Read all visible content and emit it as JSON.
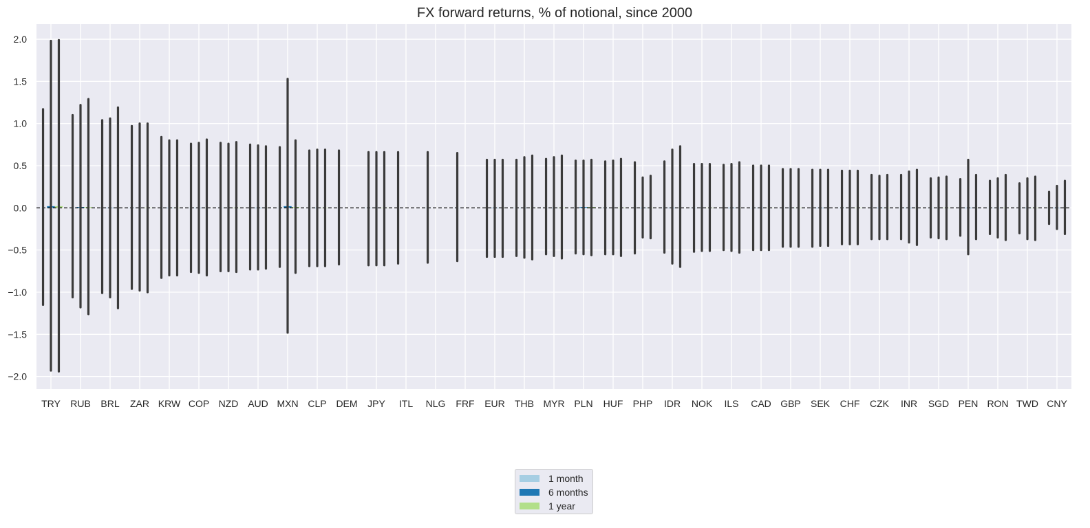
{
  "chart_data": {
    "type": "bar",
    "title": "FX forward returns, % of notional, since 2000",
    "xlabel": "",
    "ylabel": "",
    "ylim": [
      -2.15,
      2.18
    ],
    "yticks": [
      -2.0,
      -1.5,
      -1.0,
      -0.5,
      0.0,
      0.5,
      1.0,
      1.5,
      2.0
    ],
    "ytick_labels": [
      "−2.0",
      "−1.5",
      "−1.0",
      "−0.5",
      "0.0",
      "0.5",
      "1.0",
      "1.5",
      "2.0"
    ],
    "grid": true,
    "reference_line": {
      "y": 0.0,
      "style": "dashed",
      "color": "#000000"
    },
    "legend_position": "bottom-center",
    "error_bar_color": "#3a3a3a",
    "categories": [
      "TRY",
      "RUB",
      "BRL",
      "ZAR",
      "KRW",
      "COP",
      "NZD",
      "AUD",
      "MXN",
      "CLP",
      "DEM",
      "JPY",
      "ITL",
      "NLG",
      "FRF",
      "EUR",
      "THB",
      "MYR",
      "PLN",
      "HUF",
      "PHP",
      "IDR",
      "NOK",
      "ILS",
      "CAD",
      "GBP",
      "SEK",
      "CHF",
      "CZK",
      "INR",
      "SGD",
      "PEN",
      "RON",
      "TWD",
      "CNY"
    ],
    "series": [
      {
        "name": "1 month",
        "color": "#a6cee3",
        "values": [
          0.0,
          0.0,
          0.0,
          0.0,
          0.0,
          0.0,
          0.0,
          0.0,
          0.0,
          0.0,
          0.0,
          0.0,
          0.0,
          0.0,
          0.0,
          0.0,
          0.0,
          0.0,
          0.0,
          0.0,
          0.0,
          0.0,
          0.0,
          0.0,
          0.0,
          0.0,
          0.0,
          0.0,
          0.0,
          0.0,
          0.0,
          0.0,
          0.0,
          0.0,
          0.0
        ],
        "err_high": [
          1.17,
          1.1,
          1.04,
          0.97,
          0.84,
          0.76,
          0.77,
          0.75,
          0.72,
          0.68,
          0.68,
          0.66,
          0.66,
          0.66,
          0.65,
          0.57,
          0.57,
          0.58,
          0.56,
          0.55,
          0.54,
          0.55,
          0.52,
          0.51,
          0.5,
          0.46,
          0.45,
          0.44,
          0.39,
          0.39,
          0.35,
          0.34,
          0.32,
          0.29,
          0.19
        ],
        "err_low": [
          -1.15,
          -1.06,
          -1.01,
          -0.96,
          -0.83,
          -0.76,
          -0.75,
          -0.73,
          -0.7,
          -0.69,
          -0.67,
          -0.68,
          -0.66,
          -0.65,
          -0.63,
          -0.58,
          -0.57,
          -0.55,
          -0.54,
          -0.55,
          -0.54,
          -0.53,
          -0.52,
          -0.5,
          -0.5,
          -0.46,
          -0.46,
          -0.43,
          -0.37,
          -0.37,
          -0.35,
          -0.33,
          -0.31,
          -0.3,
          -0.19
        ]
      },
      {
        "name": "6 months",
        "color": "#1f78b4",
        "values": [
          0.02,
          0.01,
          0.0,
          0.0,
          0.0,
          0.0,
          0.0,
          0.0,
          0.02,
          0.0,
          null,
          0.0,
          null,
          null,
          null,
          0.0,
          0.0,
          0.0,
          0.01,
          0.0,
          0.0,
          0.0,
          0.0,
          0.0,
          0.0,
          0.0,
          0.0,
          0.0,
          0.0,
          0.0,
          0.0,
          0.0,
          0.0,
          0.0,
          0.0
        ],
        "err_high": [
          1.98,
          1.22,
          1.06,
          1.0,
          0.8,
          0.77,
          0.76,
          0.74,
          1.53,
          0.69,
          null,
          0.66,
          null,
          null,
          null,
          0.57,
          0.6,
          0.6,
          0.56,
          0.56,
          0.36,
          0.69,
          0.52,
          0.52,
          0.5,
          0.46,
          0.45,
          0.44,
          0.38,
          0.43,
          0.36,
          0.57,
          0.35,
          0.35,
          0.26
        ],
        "err_low": [
          -1.93,
          -1.18,
          -1.06,
          -0.98,
          -0.8,
          -0.77,
          -0.75,
          -0.73,
          -1.48,
          -0.69,
          null,
          -0.68,
          null,
          null,
          null,
          -0.58,
          -0.59,
          -0.57,
          -0.55,
          -0.55,
          -0.35,
          -0.66,
          -0.51,
          -0.51,
          -0.5,
          -0.46,
          -0.45,
          -0.43,
          -0.37,
          -0.41,
          -0.36,
          -0.55,
          -0.35,
          -0.37,
          -0.25
        ]
      },
      {
        "name": "1 year",
        "color": "#b2df8a",
        "values": [
          0.02,
          0.01,
          0.0,
          0.0,
          0.0,
          0.0,
          0.0,
          0.0,
          0.01,
          0.0,
          null,
          0.0,
          null,
          null,
          null,
          0.0,
          0.0,
          0.0,
          0.01,
          0.0,
          0.0,
          0.0,
          0.0,
          0.0,
          0.0,
          0.0,
          0.0,
          0.0,
          0.0,
          0.0,
          0.0,
          0.0,
          0.0,
          0.0,
          0.0
        ],
        "err_high": [
          1.99,
          1.29,
          1.19,
          1.0,
          0.8,
          0.81,
          0.78,
          0.73,
          0.8,
          0.69,
          null,
          0.66,
          null,
          null,
          null,
          0.57,
          0.62,
          0.62,
          0.57,
          0.58,
          0.38,
          0.73,
          0.52,
          0.54,
          0.5,
          0.46,
          0.45,
          0.44,
          0.39,
          0.45,
          0.37,
          0.39,
          0.39,
          0.37,
          0.32
        ],
        "err_low": [
          -1.94,
          -1.26,
          -1.19,
          -1.0,
          -0.8,
          -0.8,
          -0.76,
          -0.72,
          -0.77,
          -0.69,
          null,
          -0.68,
          null,
          null,
          null,
          -0.58,
          -0.61,
          -0.6,
          -0.56,
          -0.57,
          -0.36,
          -0.7,
          -0.51,
          -0.53,
          -0.5,
          -0.46,
          -0.45,
          -0.43,
          -0.37,
          -0.44,
          -0.37,
          -0.37,
          -0.38,
          -0.38,
          -0.31
        ]
      }
    ]
  },
  "legend": {
    "items": [
      {
        "label": "1 month",
        "color": "#a6cee3"
      },
      {
        "label": "6 months",
        "color": "#1f78b4"
      },
      {
        "label": "1 year",
        "color": "#b2df8a"
      }
    ]
  }
}
